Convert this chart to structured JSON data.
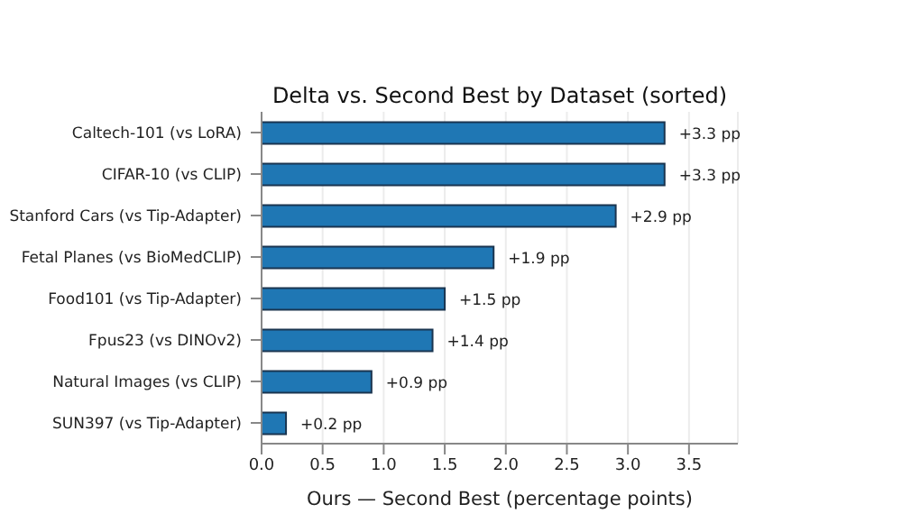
{
  "chart_data": {
    "type": "bar",
    "orientation": "horizontal",
    "title": "Delta vs. Second Best by Dataset (sorted)",
    "xlabel": "Ours — Second Best (percentage points)",
    "categories": [
      "Caltech-101 (vs LoRA)",
      "CIFAR-10 (vs CLIP)",
      "Stanford Cars (vs Tip-Adapter)",
      "Fetal Planes (vs BioMedCLIP)",
      "Food101 (vs Tip-Adapter)",
      "Fpus23 (vs DINOv2)",
      "Natural Images (vs CLIP)",
      "SUN397 (vs Tip-Adapter)"
    ],
    "values": [
      3.3,
      3.3,
      2.9,
      1.9,
      1.5,
      1.4,
      0.9,
      0.2
    ],
    "value_labels": [
      "+3.3 pp",
      "+3.3 pp",
      "+2.9 pp",
      "+1.9 pp",
      "+1.5 pp",
      "+1.4 pp",
      "+0.9 pp",
      "+0.2 pp"
    ],
    "color": "#1f77b4",
    "xlim": [
      0,
      3.9
    ],
    "xticks": [
      {
        "value": 0,
        "label": "0.0"
      },
      0.5,
      {
        "value": 1,
        "label": "1.0"
      },
      1.5,
      {
        "value": 2,
        "label": "2.0"
      },
      2.5,
      {
        "value": 3,
        "label": "3.0"
      },
      3.5
    ],
    "grid": "x"
  }
}
